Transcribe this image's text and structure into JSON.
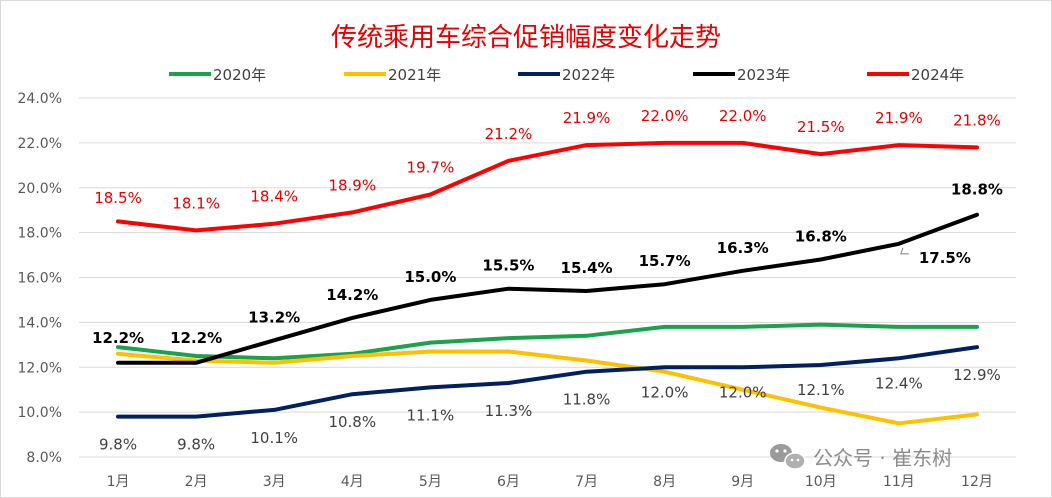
{
  "chart_data": {
    "type": "line",
    "title": "传统乘用车综合促销幅度变化走势",
    "categories": [
      "1月",
      "2月",
      "3月",
      "4月",
      "5月",
      "6月",
      "7月",
      "8月",
      "9月",
      "10月",
      "11月",
      "12月"
    ],
    "y_ticks": [
      "8.0%",
      "10.0%",
      "12.0%",
      "14.0%",
      "16.0%",
      "18.0%",
      "20.0%",
      "22.0%",
      "24.0%"
    ],
    "ylim": [
      8,
      24
    ],
    "grid": true,
    "legend_position": "top",
    "series": [
      {
        "name": "2020年",
        "color": "#1aa34a",
        "values": [
          12.9,
          12.5,
          12.4,
          12.6,
          13.1,
          13.3,
          13.4,
          13.8,
          13.8,
          13.9,
          13.8,
          13.8
        ],
        "labels": []
      },
      {
        "name": "2021年",
        "color": "#ffc000",
        "values": [
          12.6,
          12.3,
          12.2,
          12.5,
          12.7,
          12.7,
          12.3,
          11.8,
          11.0,
          10.2,
          9.5,
          9.9
        ],
        "labels": []
      },
      {
        "name": "2022年",
        "color": "#002060",
        "values": [
          9.8,
          9.8,
          10.1,
          10.8,
          11.1,
          11.3,
          11.8,
          12.0,
          12.0,
          12.1,
          12.4,
          12.9
        ],
        "labels": [
          "9.8%",
          "9.8%",
          "10.1%",
          "10.8%",
          "11.1%",
          "11.3%",
          "11.8%",
          "12.0%",
          "12.0%",
          "12.1%",
          "12.4%",
          "12.9%"
        ]
      },
      {
        "name": "2023年",
        "color": "#000000",
        "values": [
          12.2,
          12.2,
          13.2,
          14.2,
          15.0,
          15.5,
          15.4,
          15.7,
          16.3,
          16.8,
          17.5,
          18.8
        ],
        "labels": [
          "12.2%",
          "12.2%",
          "13.2%",
          "14.2%",
          "15.0%",
          "15.5%",
          "15.4%",
          "15.7%",
          "16.3%",
          "16.8%",
          "17.5%",
          "18.8%"
        ]
      },
      {
        "name": "2024年",
        "color": "#ff0000",
        "values": [
          18.5,
          18.1,
          18.4,
          18.9,
          19.7,
          21.2,
          21.9,
          22.0,
          22.0,
          21.5,
          21.9,
          21.8
        ],
        "labels": [
          "18.5%",
          "18.1%",
          "18.4%",
          "18.9%",
          "19.7%",
          "21.2%",
          "21.9%",
          "22.0%",
          "22.0%",
          "21.5%",
          "21.9%",
          "21.8%"
        ]
      }
    ]
  },
  "watermark": {
    "text": "公众号 · 崔东树",
    "icon": "wechat-icon"
  }
}
